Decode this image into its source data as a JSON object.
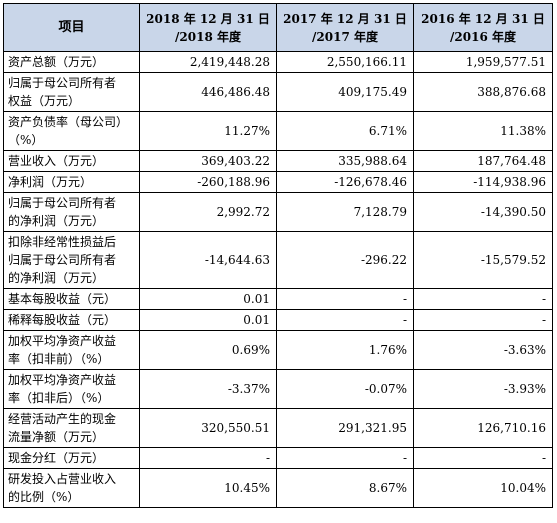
{
  "table": {
    "headers": [
      "项目",
      "2018 年 12 月 31 日\n/2018 年度",
      "2017 年 12 月 31 日\n/2017 年度",
      "2016 年 12 月 31 日\n/2016 年度"
    ],
    "rows": [
      {
        "label": "资产总额（万元）",
        "v2018": "2,419,448.28",
        "v2017": "2,550,166.11",
        "v2016": "1,959,577.51"
      },
      {
        "label": "归属于母公司所有者\n权益（万元）",
        "v2018": "446,486.48",
        "v2017": "409,175.49",
        "v2016": "388,876.68"
      },
      {
        "label": "资产负债率（母公司）\n（%）",
        "v2018": "11.27%",
        "v2017": "6.71%",
        "v2016": "11.38%"
      },
      {
        "label": "营业收入（万元）",
        "v2018": "369,403.22",
        "v2017": "335,988.64",
        "v2016": "187,764.48"
      },
      {
        "label": "净利润（万元）",
        "v2018": "-260,188.96",
        "v2017": "-126,678.46",
        "v2016": "-114,938.96"
      },
      {
        "label": "归属于母公司所有者\n的净利润（万元）",
        "v2018": "2,992.72",
        "v2017": "7,128.79",
        "v2016": "-14,390.50"
      },
      {
        "label": "扣除非经常性损益后\n归属于母公司所有者\n的净利润（万元）",
        "v2018": "-14,644.63",
        "v2017": "-296.22",
        "v2016": "-15,579.52"
      },
      {
        "label": "基本每股收益（元）",
        "v2018": "0.01",
        "v2017": "-",
        "v2016": "-"
      },
      {
        "label": "稀释每股收益（元）",
        "v2018": "0.01",
        "v2017": "-",
        "v2016": "-"
      },
      {
        "label": "加权平均净资产收益\n率（扣非前）（%）",
        "v2018": "0.69%",
        "v2017": "1.76%",
        "v2016": "-3.63%"
      },
      {
        "label": "加权平均净资产收益\n率（扣非后）（%）",
        "v2018": "-3.37%",
        "v2017": "-0.07%",
        "v2016": "-3.93%"
      },
      {
        "label": "经营活动产生的现金\n流量净额（万元）",
        "v2018": "320,550.51",
        "v2017": "291,321.95",
        "v2016": "126,710.16"
      },
      {
        "label": "现金分红（万元）",
        "v2018": "-",
        "v2017": "-",
        "v2016": "-"
      },
      {
        "label": "研发投入占营业收入\n的比例（%）",
        "v2018": "10.45%",
        "v2017": "8.67%",
        "v2016": "10.04%"
      }
    ]
  }
}
